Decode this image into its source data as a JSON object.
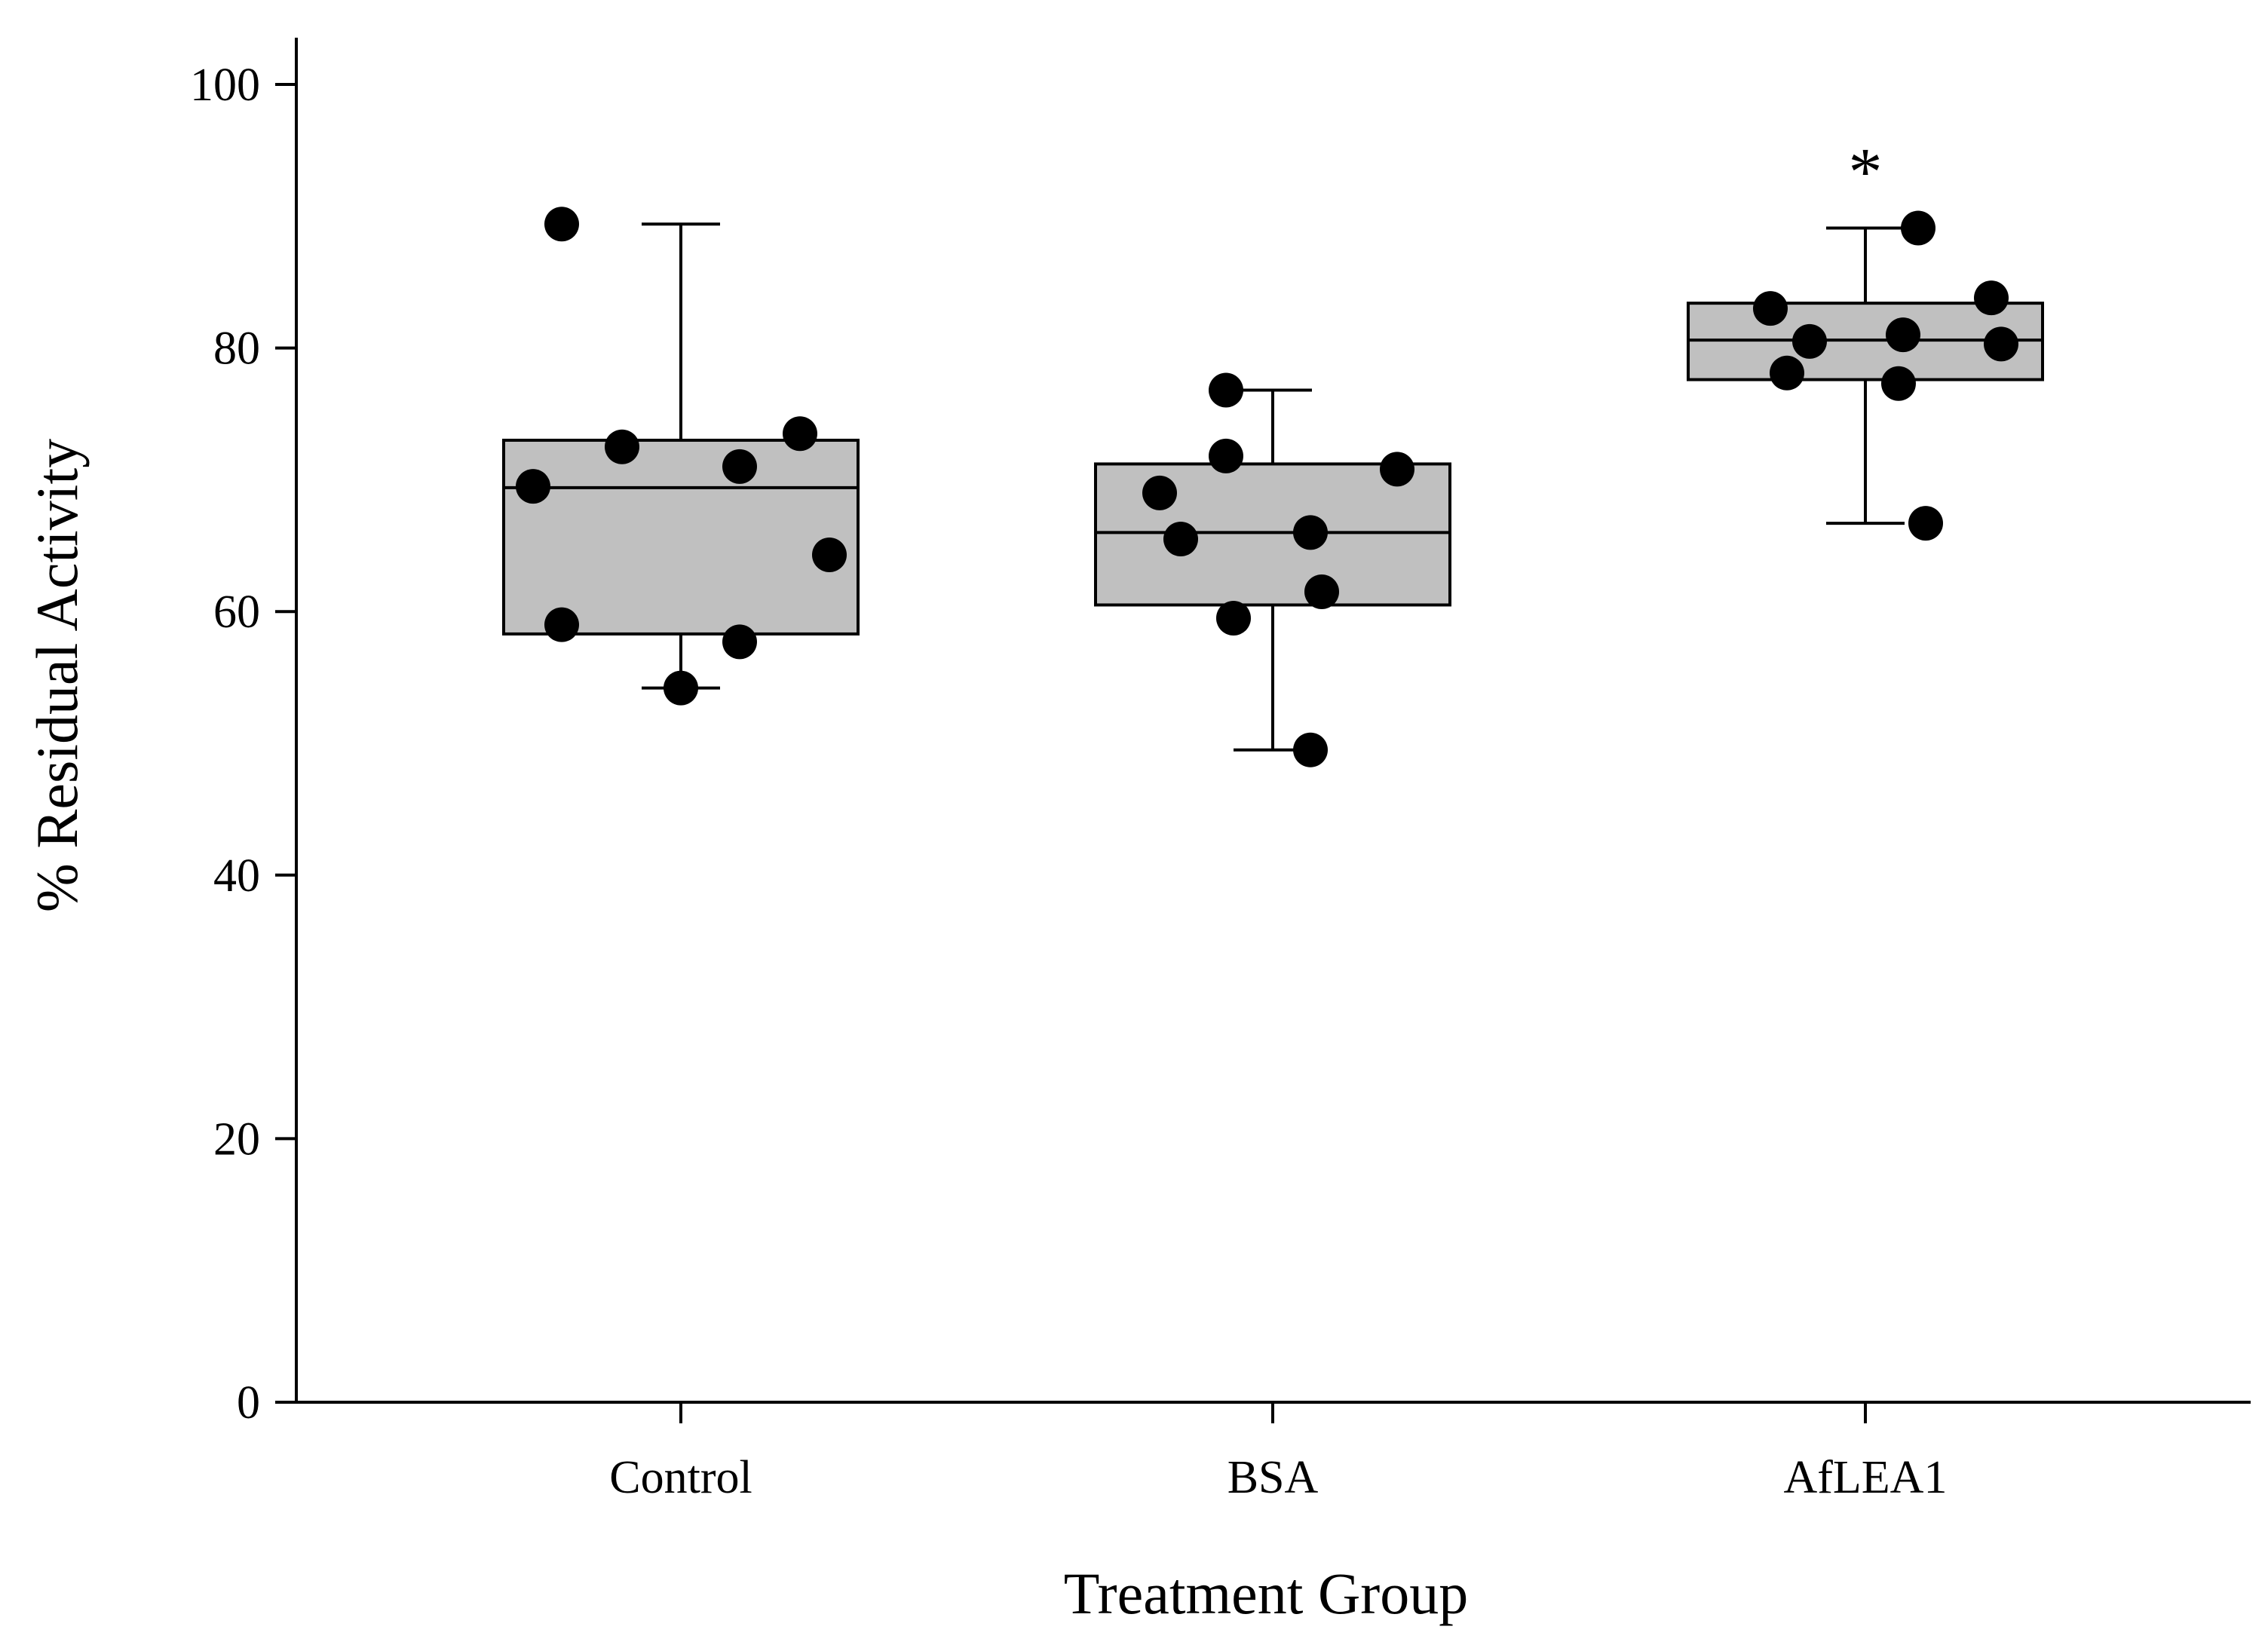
{
  "chart_data": {
    "type": "box",
    "title": "",
    "xlabel": "Treatment Group",
    "ylabel": "% Residual Activity",
    "ylim": [
      0,
      110
    ],
    "yticks": [
      0,
      20,
      40,
      60,
      80,
      100
    ],
    "grid": false,
    "legend": "none",
    "colors": {
      "box_fill": "#c0c0c0",
      "point": "#000000",
      "line": "#000000"
    },
    "categories": [
      "Control",
      "BSA",
      "AfLEA1"
    ],
    "boxes": [
      {
        "category": "Control",
        "q1": 58.3,
        "median": 69.4,
        "q3": 73.0,
        "whisker_low": 54.2,
        "whisker_high": 89.4,
        "points": [
          89.4,
          72.5,
          73.5,
          71.0,
          69.5,
          64.3,
          59.0,
          57.7,
          54.2
        ]
      },
      {
        "category": "BSA",
        "q1": 60.5,
        "median": 66.0,
        "q3": 71.2,
        "whisker_low": 49.5,
        "whisker_high": 76.8,
        "points": [
          76.8,
          71.8,
          70.8,
          69.0,
          66.0,
          65.5,
          61.5,
          59.5,
          49.5
        ]
      },
      {
        "category": "AfLEA1",
        "q1": 77.6,
        "median": 80.6,
        "q3": 83.4,
        "whisker_low": 66.7,
        "whisker_high": 89.1,
        "points": [
          89.1,
          83.8,
          83.0,
          81.0,
          80.5,
          80.3,
          78.1,
          77.3,
          66.7
        ]
      }
    ],
    "annotations": [
      {
        "category": "AfLEA1",
        "text": "*",
        "y": 94.5
      }
    ]
  }
}
